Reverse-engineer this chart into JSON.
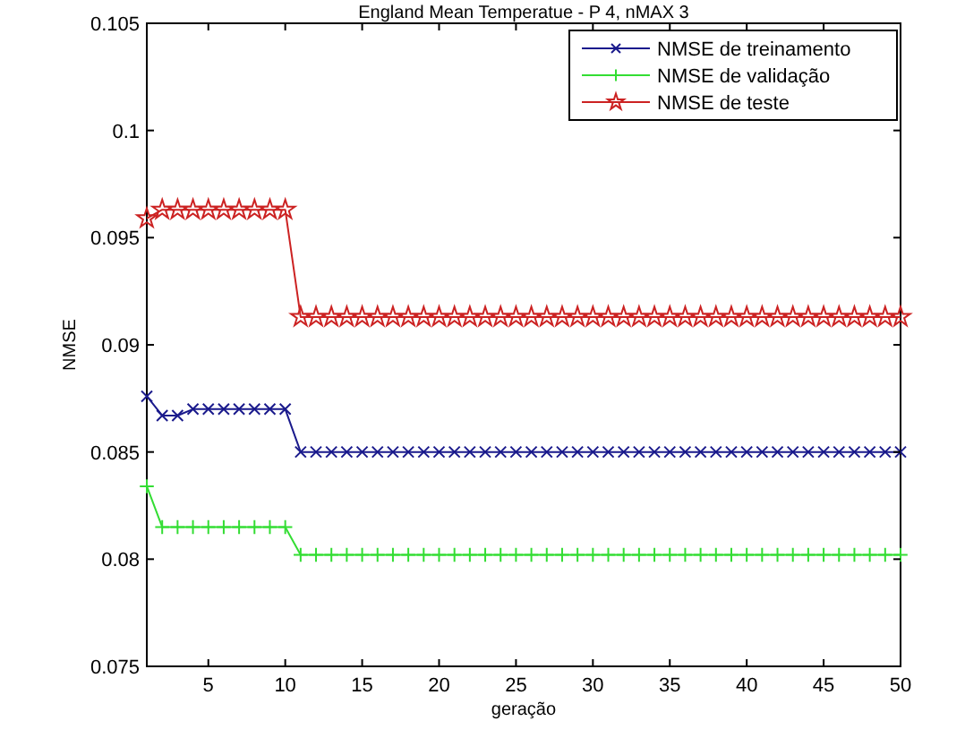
{
  "chart_data": {
    "type": "line",
    "title": "England Mean Temperatue - P 4, nMAX 3",
    "xlabel": "geração",
    "ylabel": "NMSE",
    "x": [
      1,
      2,
      3,
      4,
      5,
      6,
      7,
      8,
      9,
      10,
      11,
      12,
      13,
      14,
      15,
      16,
      17,
      18,
      19,
      20,
      21,
      22,
      23,
      24,
      25,
      26,
      27,
      28,
      29,
      30,
      31,
      32,
      33,
      34,
      35,
      36,
      37,
      38,
      39,
      40,
      41,
      42,
      43,
      44,
      45,
      46,
      47,
      48,
      49,
      50
    ],
    "series": [
      {
        "name": "NMSE de treinamento",
        "color": "#1a1a8c",
        "marker": "cross",
        "values": [
          0.0876,
          0.0867,
          0.0867,
          0.087,
          0.087,
          0.087,
          0.087,
          0.087,
          0.087,
          0.087,
          0.085,
          0.085,
          0.085,
          0.085,
          0.085,
          0.085,
          0.085,
          0.085,
          0.085,
          0.085,
          0.085,
          0.085,
          0.085,
          0.085,
          0.085,
          0.085,
          0.085,
          0.085,
          0.085,
          0.085,
          0.085,
          0.085,
          0.085,
          0.085,
          0.085,
          0.085,
          0.085,
          0.085,
          0.085,
          0.085,
          0.085,
          0.085,
          0.085,
          0.085,
          0.085,
          0.085,
          0.085,
          0.085,
          0.085,
          0.085
        ]
      },
      {
        "name": "NMSE de validação",
        "color": "#33dd33",
        "marker": "plus",
        "values": [
          0.0834,
          0.0815,
          0.0815,
          0.0815,
          0.0815,
          0.0815,
          0.0815,
          0.0815,
          0.0815,
          0.0815,
          0.0802,
          0.0802,
          0.0802,
          0.0802,
          0.0802,
          0.0802,
          0.0802,
          0.0802,
          0.0802,
          0.0802,
          0.0802,
          0.0802,
          0.0802,
          0.0802,
          0.0802,
          0.0802,
          0.0802,
          0.0802,
          0.0802,
          0.0802,
          0.0802,
          0.0802,
          0.0802,
          0.0802,
          0.0802,
          0.0802,
          0.0802,
          0.0802,
          0.0802,
          0.0802,
          0.0802,
          0.0802,
          0.0802,
          0.0802,
          0.0802,
          0.0802,
          0.0802,
          0.0802,
          0.0802,
          0.0802
        ]
      },
      {
        "name": "NMSE de teste",
        "color": "#cc2222",
        "marker": "star",
        "values": [
          0.0959,
          0.0963,
          0.0963,
          0.0963,
          0.0963,
          0.0963,
          0.0963,
          0.0963,
          0.0963,
          0.0963,
          0.0913,
          0.0913,
          0.0913,
          0.0913,
          0.0913,
          0.0913,
          0.0913,
          0.0913,
          0.0913,
          0.0913,
          0.0913,
          0.0913,
          0.0913,
          0.0913,
          0.0913,
          0.0913,
          0.0913,
          0.0913,
          0.0913,
          0.0913,
          0.0913,
          0.0913,
          0.0913,
          0.0913,
          0.0913,
          0.0913,
          0.0913,
          0.0913,
          0.0913,
          0.0913,
          0.0913,
          0.0913,
          0.0913,
          0.0913,
          0.0913,
          0.0913,
          0.0913,
          0.0913,
          0.0913,
          0.0913
        ]
      }
    ],
    "xlim": [
      1,
      50
    ],
    "xticks": [
      5,
      10,
      15,
      20,
      25,
      30,
      35,
      40,
      45,
      50
    ],
    "ylim": [
      0.075,
      0.105
    ],
    "yticks": [
      0.075,
      0.08,
      0.085,
      0.09,
      0.095,
      0.1,
      0.105
    ],
    "legend": "top right",
    "grid": false,
    "line_style": "solid"
  }
}
